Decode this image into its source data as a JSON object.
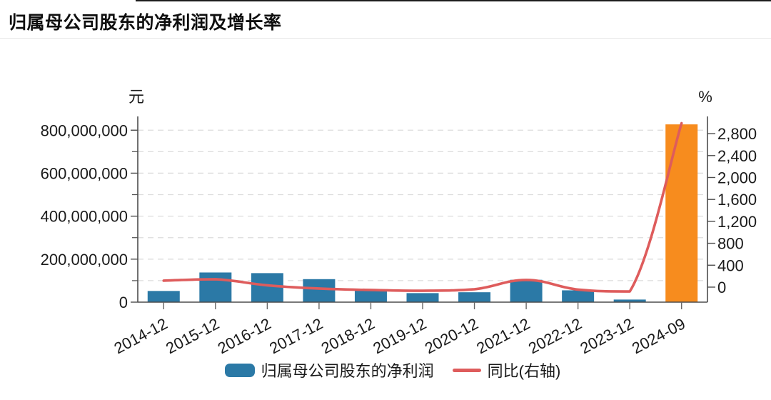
{
  "header": {
    "title": "归属母公司股东的净利润及增长率"
  },
  "chart_data": {
    "type": "bar",
    "subtype": "bar+line combo, dual axis",
    "title": "归属母公司股东的净利润及增长率",
    "categories": [
      "2014-12",
      "2015-12",
      "2016-12",
      "2017-12",
      "2018-12",
      "2019-12",
      "2020-12",
      "2021-12",
      "2022-12",
      "2023-12",
      "2024-09"
    ],
    "series": [
      {
        "name": "归属母公司股东的净利润",
        "type": "bar",
        "axis": "left",
        "unit": "元",
        "values": [
          52000000,
          138000000,
          135000000,
          107000000,
          53000000,
          42000000,
          46000000,
          104000000,
          55000000,
          12000000,
          827000000
        ]
      },
      {
        "name": "同比(右轴)",
        "type": "line",
        "axis": "right",
        "unit": "%",
        "values": [
          118,
          144,
          33,
          -26,
          -52,
          -66,
          -39,
          131,
          -45,
          -79,
          2990
        ]
      }
    ],
    "left_axis": {
      "unit": "元",
      "min": 0,
      "max": 864000000,
      "major_ticks": [
        {
          "value": 0,
          "label": "0"
        },
        {
          "value": 200000000,
          "label": "200,000,000"
        },
        {
          "value": 400000000,
          "label": "400,000,000"
        },
        {
          "value": 600000000,
          "label": "600,000,000"
        },
        {
          "value": 800000000,
          "label": "800,000,000"
        }
      ],
      "minor_ticks": [
        100000000,
        300000000,
        500000000,
        700000000
      ],
      "gridlines": [
        100000000,
        200000000,
        300000000,
        400000000,
        500000000,
        600000000,
        700000000,
        800000000
      ]
    },
    "right_axis": {
      "unit": "%",
      "min": -274,
      "max": 3114,
      "major_ticks": [
        {
          "value": 0,
          "label": "0"
        },
        {
          "value": 400,
          "label": "400"
        },
        {
          "value": 800,
          "label": "800"
        },
        {
          "value": 1200,
          "label": "1,200"
        },
        {
          "value": 1600,
          "label": "1,600"
        },
        {
          "value": 2000,
          "label": "2,000"
        },
        {
          "value": 2400,
          "label": "2,400"
        },
        {
          "value": 2800,
          "label": "2,800"
        }
      ]
    },
    "grid": "horizontal dashed gridlines every 100,000,000 (left axis)",
    "legend_position": "bottom",
    "colors": {
      "bar": "#2b79a6",
      "bar_highlight": "#f78c1e",
      "highlight_index": 10,
      "line": "#de5c5c",
      "axis": "#4d4d4d",
      "gridline": "#dcdcdc"
    }
  }
}
